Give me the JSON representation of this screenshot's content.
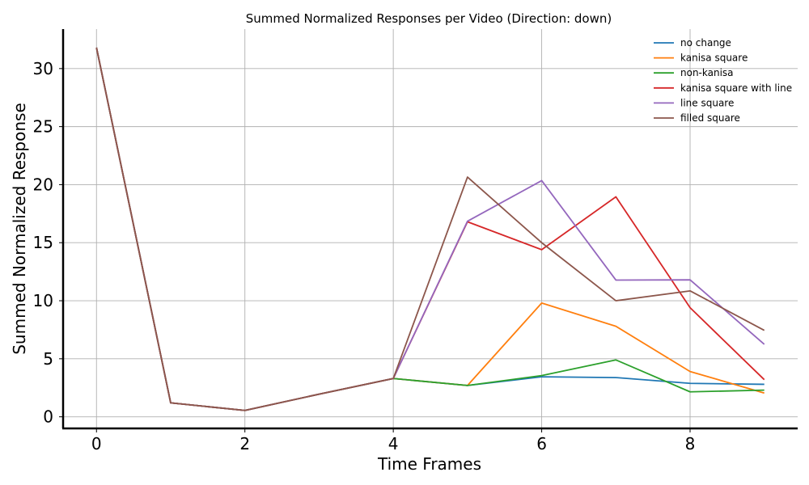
{
  "chart_data": {
    "type": "line",
    "title": "Summed Normalized Responses per Video (Direction: down)",
    "xlabel": "Time Frames",
    "ylabel": "Summed Normalized Response",
    "x": [
      0,
      1,
      2,
      3,
      4,
      5,
      6,
      7,
      8,
      9
    ],
    "xlim": [
      -0.45,
      9.45
    ],
    "ylim": [
      -1.0,
      33.4
    ],
    "xticks": [
      0,
      2,
      4,
      6,
      8
    ],
    "yticks": [
      0,
      5,
      10,
      15,
      20,
      25,
      30
    ],
    "xtick_labels": [
      "0",
      "2",
      "4",
      "6",
      "8"
    ],
    "ytick_labels": [
      "0",
      "5",
      "10",
      "15",
      "20",
      "25",
      "30"
    ],
    "grid": true,
    "legend_position": "top-right",
    "series": [
      {
        "name": "no change",
        "color": "#1f77b4",
        "values": [
          31.8,
          1.2,
          0.55,
          1.95,
          3.3,
          2.7,
          3.45,
          3.38,
          2.88,
          2.8
        ]
      },
      {
        "name": "kanisa square",
        "color": "#ff7f0e",
        "values": [
          31.8,
          1.2,
          0.55,
          1.95,
          3.3,
          2.7,
          9.8,
          7.8,
          3.9,
          2.05
        ]
      },
      {
        "name": "non-kanisa",
        "color": "#2ca02c",
        "values": [
          31.8,
          1.2,
          0.55,
          1.95,
          3.3,
          2.7,
          3.55,
          4.9,
          2.15,
          2.3
        ]
      },
      {
        "name": "kanisa square with line",
        "color": "#d62728",
        "values": [
          31.8,
          1.2,
          0.55,
          1.95,
          3.3,
          16.8,
          14.4,
          18.95,
          9.4,
          3.2
        ]
      },
      {
        "name": "line square",
        "color": "#9467bd",
        "values": [
          31.8,
          1.2,
          0.55,
          1.95,
          3.3,
          16.85,
          20.35,
          11.78,
          11.8,
          6.25
        ]
      },
      {
        "name": "filled square",
        "color": "#8c564b",
        "values": [
          31.8,
          1.2,
          0.55,
          1.95,
          3.3,
          20.65,
          15.0,
          10.0,
          10.85,
          7.45
        ]
      }
    ]
  }
}
